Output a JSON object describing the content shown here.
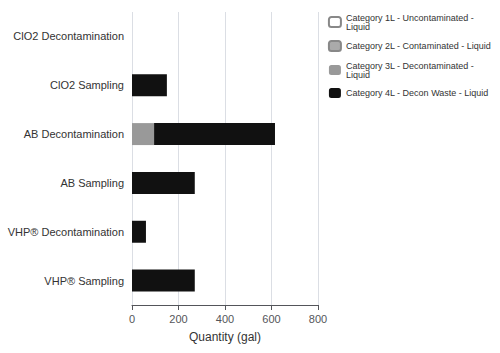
{
  "chart_data": {
    "type": "bar",
    "orientation": "horizontal",
    "stacked": true,
    "categories": [
      "VHP® Sampling",
      "VHP® Decontamination",
      "AB Sampling",
      "AB Decontamination",
      "ClO2 Sampling",
      "ClO2 Decontamination"
    ],
    "series": [
      {
        "name": "Category 1L - Uncontaminated -\nLiquid",
        "color": "#ffffff",
        "values": [
          null,
          null,
          null,
          null,
          null,
          null
        ]
      },
      {
        "name": "Category 2L - Contaminated - Liquid",
        "color": "#aaaaaa",
        "values": [
          null,
          null,
          null,
          null,
          null,
          null
        ]
      },
      {
        "name": "Category 3L - Decontaminated -\nLiquid",
        "color": "#999999",
        "values": [
          0,
          0,
          0,
          95,
          0,
          0
        ]
      },
      {
        "name": "Category 4L - Decon Waste - Liquid",
        "color": "#111111",
        "values": [
          270,
          60,
          270,
          520,
          150,
          0
        ]
      }
    ],
    "xlabel": "Quantity (gal)",
    "xlim": [
      0,
      800
    ],
    "xticks": [
      0,
      200,
      400,
      600,
      800
    ],
    "grid": true,
    "legend": "upper right"
  }
}
